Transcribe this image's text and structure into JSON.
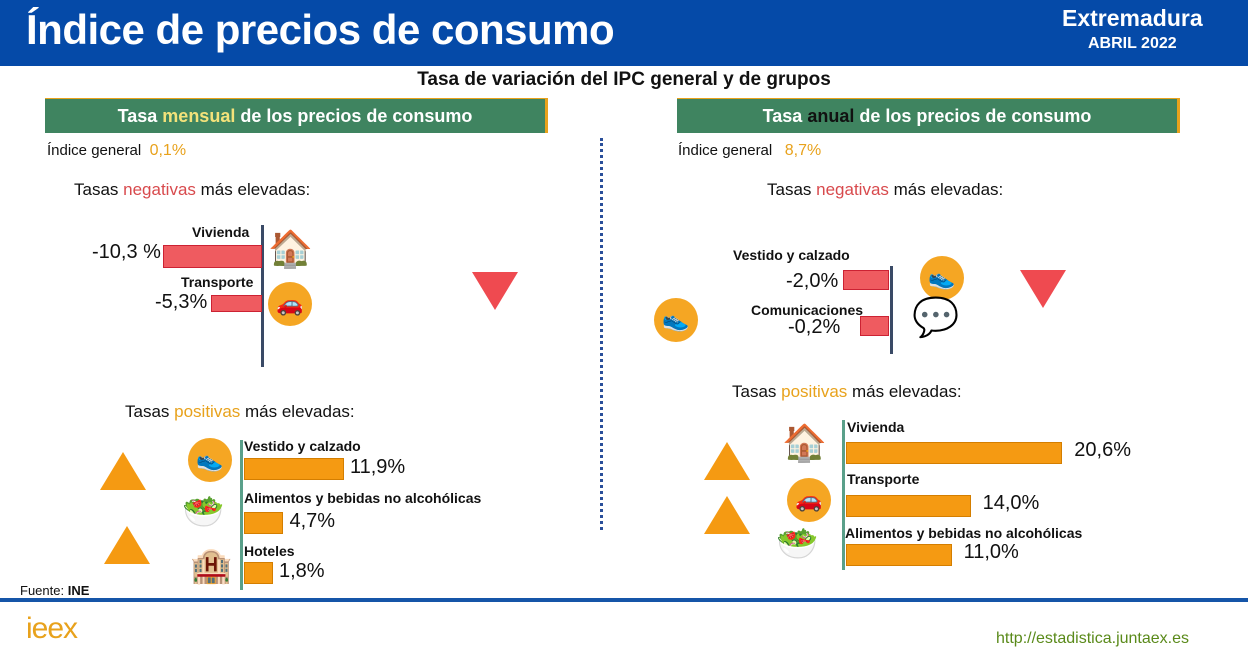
{
  "header": {
    "title": "Índice de precios de consumo",
    "region": "Extremadura",
    "date": "ABRIL 2022"
  },
  "subtitle": "Tasa de variación del IPC general y de grupos",
  "monthly": {
    "title_pre": "Tasa ",
    "title_hl": "mensual",
    "title_post": " de los precios de consumo",
    "general_label": "Índice general",
    "general_value": "0,1%",
    "neg_title_pre": "Tasas ",
    "neg_title_hl": "negativas",
    "neg_title_post": " más elevadas:",
    "pos_title_pre": "Tasas ",
    "pos_title_hl": "positivas",
    "pos_title_post": " más elevadas:",
    "negatives": [
      {
        "label": "Vivienda",
        "value": -10.3,
        "text": "-10,3 %"
      },
      {
        "label": "Transporte",
        "value": -5.3,
        "text": "-5,3%"
      }
    ],
    "positives": [
      {
        "label": "Vestido y calzado",
        "value": 11.9,
        "text": "11,9%"
      },
      {
        "label": "Alimentos y bebidas no alcohólicas",
        "value": 4.7,
        "text": "4,7%"
      },
      {
        "label": "Hoteles",
        "value": 1.8,
        "text": "1,8%"
      }
    ]
  },
  "annual": {
    "title_pre": "Tasa ",
    "title_hl": "anual",
    "title_post": " de los precios de consumo",
    "general_label": "Índice general",
    "general_value": "8,7%",
    "neg_title_pre": "Tasas ",
    "neg_title_hl": "negativas",
    "neg_title_post": " más elevadas:",
    "pos_title_pre": "Tasas ",
    "pos_title_hl": "positivas",
    "pos_title_post": " más elevadas:",
    "negatives": [
      {
        "label": "Vestido y calzado",
        "value": -2.0,
        "text": "-2,0%"
      },
      {
        "label": "Comunicaciones",
        "value": -0.2,
        "text": "-0,2%"
      }
    ],
    "positives": [
      {
        "label": "Vivienda",
        "value": 20.6,
        "text": "20,6%"
      },
      {
        "label": "Transporte",
        "value": 14.0,
        "text": "14,0%"
      },
      {
        "label": "Alimentos y bebidas no alcohólicas",
        "value": 11.0,
        "text": "11,0%"
      }
    ]
  },
  "footer": {
    "source_label": "Fuente: ",
    "source": "INE",
    "logo": "ieex",
    "url": "http://estadistica.juntaex.es"
  },
  "chart_data": [
    {
      "type": "bar",
      "title": "Tasa mensual de los precios de consumo",
      "categories": [
        "Vivienda",
        "Transporte",
        "Vestido y calzado",
        "Alimentos y bebidas no alcohólicas",
        "Hoteles"
      ],
      "values": [
        -10.3,
        -5.3,
        11.9,
        4.7,
        1.8
      ]
    },
    {
      "type": "bar",
      "title": "Tasa anual de los precios de consumo",
      "categories": [
        "Vestido y calzado",
        "Comunicaciones",
        "Vivienda",
        "Transporte",
        "Alimentos y bebidas no alcohólicas"
      ],
      "values": [
        -2.0,
        -0.2,
        20.6,
        14.0,
        11.0
      ]
    }
  ],
  "colors": {
    "header": "#054aa8",
    "panel": "#3f8460",
    "positive": "#f59a12",
    "negative": "#ef5b60"
  }
}
